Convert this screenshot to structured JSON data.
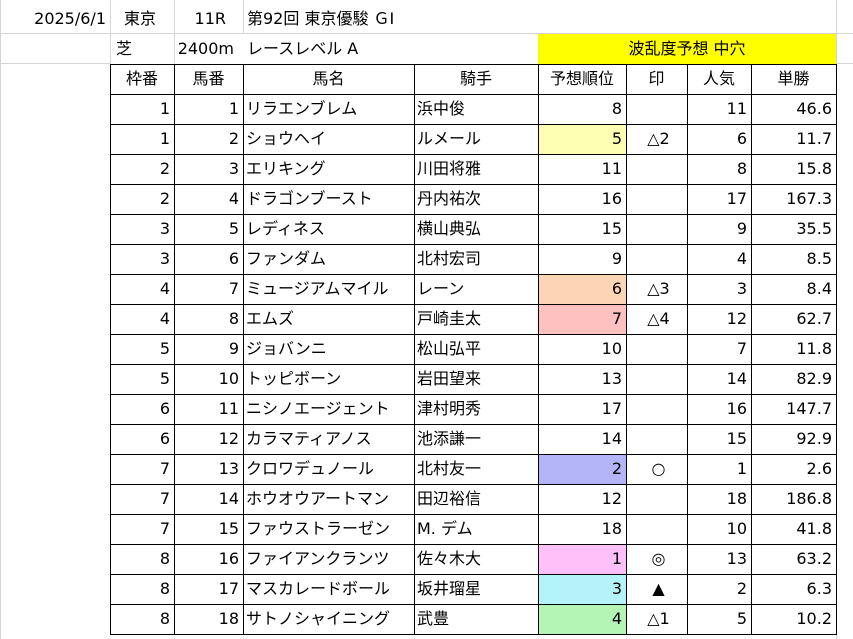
{
  "header": {
    "date": "2025/6/1",
    "venue": "東京",
    "race_no": "11R",
    "race_name": "第92回 東京優駿 ＧⅠ",
    "surface": "芝",
    "distance": "2400m",
    "level": "レースレベル A",
    "forecast": "波乱度予想 中穴"
  },
  "columns": [
    "枠番",
    "馬番",
    "馬名",
    "騎手",
    "予想順位",
    "印",
    "人気",
    "単勝"
  ],
  "rows": [
    {
      "waku": "1",
      "uma": "1",
      "name": "リラエンブレム",
      "jockey": "浜中俊",
      "rank": "8",
      "mark": "",
      "ninki": "11",
      "odds": "46.6",
      "color": ""
    },
    {
      "waku": "1",
      "uma": "2",
      "name": "ショウヘイ",
      "jockey": "ルメール",
      "rank": "5",
      "mark": "△2",
      "ninki": "6",
      "odds": "11.7",
      "color": "#ffffb3"
    },
    {
      "waku": "2",
      "uma": "3",
      "name": "エリキング",
      "jockey": "川田将雅",
      "rank": "11",
      "mark": "",
      "ninki": "8",
      "odds": "15.8",
      "color": ""
    },
    {
      "waku": "2",
      "uma": "4",
      "name": "ドラゴンブースト",
      "jockey": "丹内祐次",
      "rank": "16",
      "mark": "",
      "ninki": "17",
      "odds": "167.3",
      "color": ""
    },
    {
      "waku": "3",
      "uma": "5",
      "name": "レディネス",
      "jockey": "横山典弘",
      "rank": "15",
      "mark": "",
      "ninki": "9",
      "odds": "35.5",
      "color": ""
    },
    {
      "waku": "3",
      "uma": "6",
      "name": "ファンダム",
      "jockey": "北村宏司",
      "rank": "9",
      "mark": "",
      "ninki": "4",
      "odds": "8.5",
      "color": ""
    },
    {
      "waku": "4",
      "uma": "7",
      "name": "ミュージアムマイル",
      "jockey": "レーン",
      "rank": "6",
      "mark": "△3",
      "ninki": "3",
      "odds": "8.4",
      "color": "#fcd5b4"
    },
    {
      "waku": "4",
      "uma": "8",
      "name": "エムズ",
      "jockey": "戸崎圭太",
      "rank": "7",
      "mark": "△4",
      "ninki": "12",
      "odds": "62.7",
      "color": "#ffc0c0"
    },
    {
      "waku": "5",
      "uma": "9",
      "name": "ジョバンニ",
      "jockey": "松山弘平",
      "rank": "10",
      "mark": "",
      "ninki": "7",
      "odds": "11.8",
      "color": ""
    },
    {
      "waku": "5",
      "uma": "10",
      "name": "トッピボーン",
      "jockey": "岩田望来",
      "rank": "13",
      "mark": "",
      "ninki": "14",
      "odds": "82.9",
      "color": ""
    },
    {
      "waku": "6",
      "uma": "11",
      "name": "ニシノエージェント",
      "jockey": "津村明秀",
      "rank": "17",
      "mark": "",
      "ninki": "16",
      "odds": "147.7",
      "color": ""
    },
    {
      "waku": "6",
      "uma": "12",
      "name": "カラマティアノス",
      "jockey": "池添謙一",
      "rank": "14",
      "mark": "",
      "ninki": "15",
      "odds": "92.9",
      "color": ""
    },
    {
      "waku": "7",
      "uma": "13",
      "name": "クロワデュノール",
      "jockey": "北村友一",
      "rank": "2",
      "mark": "○",
      "ninki": "1",
      "odds": "2.6",
      "color": "#b4b4f8"
    },
    {
      "waku": "7",
      "uma": "14",
      "name": "ホウオウアートマン",
      "jockey": "田辺裕信",
      "rank": "12",
      "mark": "",
      "ninki": "18",
      "odds": "186.8",
      "color": ""
    },
    {
      "waku": "7",
      "uma": "15",
      "name": "ファウストラーゼン",
      "jockey": "M. デム",
      "rank": "18",
      "mark": "",
      "ninki": "10",
      "odds": "41.8",
      "color": ""
    },
    {
      "waku": "8",
      "uma": "16",
      "name": "ファイアンクランツ",
      "jockey": "佐々木大",
      "rank": "1",
      "mark": "◎",
      "ninki": "13",
      "odds": "63.2",
      "color": "#ffbff8"
    },
    {
      "waku": "8",
      "uma": "17",
      "name": "マスカレードボール",
      "jockey": "坂井瑠星",
      "rank": "3",
      "mark": "▲",
      "ninki": "2",
      "odds": "6.3",
      "color": "#b4f4f8"
    },
    {
      "waku": "8",
      "uma": "18",
      "name": "サトノシャイニング",
      "jockey": "武豊",
      "rank": "4",
      "mark": "△1",
      "ninki": "5",
      "odds": "10.2",
      "color": "#b4f4b4"
    }
  ]
}
